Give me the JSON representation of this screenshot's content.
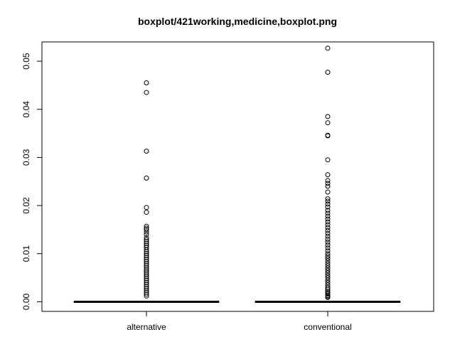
{
  "chart_data": {
    "type": "boxplot",
    "title": "boxplot/421working,medicine,boxplot.png",
    "xlabel": "",
    "ylabel": "",
    "categories": [
      "alternative",
      "conventional"
    ],
    "ylim": [
      -0.002,
      0.054
    ],
    "yticks": [
      0.0,
      0.01,
      0.02,
      0.03,
      0.04,
      0.05
    ],
    "ytick_labels": [
      "0.00",
      "0.01",
      "0.02",
      "0.03",
      "0.04",
      "0.05"
    ],
    "grid": false,
    "series": [
      {
        "category": "alternative",
        "box": {
          "min": 0,
          "q1": 0,
          "median": 0,
          "q3": 0,
          "max": 0
        },
        "outliers": [
          0.0455,
          0.0435,
          0.0313,
          0.0257,
          0.0196,
          0.0186,
          0.0157,
          0.0153,
          0.015,
          0.0145,
          0.014,
          0.0133,
          0.0129,
          0.0125,
          0.0121,
          0.0117,
          0.0113,
          0.0108,
          0.0104,
          0.01,
          0.0096,
          0.0092,
          0.0088,
          0.0084,
          0.008,
          0.0076,
          0.0072,
          0.0068,
          0.0064,
          0.006,
          0.0056,
          0.0052,
          0.0048,
          0.0044,
          0.004,
          0.0036,
          0.0032,
          0.0028,
          0.0024,
          0.002,
          0.0016,
          0.0012
        ]
      },
      {
        "category": "conventional",
        "box": {
          "min": 0,
          "q1": 0,
          "median": 0,
          "q3": 0,
          "max": 0
        },
        "outliers": [
          0.0527,
          0.0477,
          0.0385,
          0.0372,
          0.0346,
          0.0345,
          0.0295,
          0.0264,
          0.0252,
          0.0246,
          0.024,
          0.0228,
          0.0214,
          0.0209,
          0.0203,
          0.0197,
          0.019,
          0.0184,
          0.0178,
          0.0172,
          0.0166,
          0.016,
          0.0154,
          0.0148,
          0.0142,
          0.0136,
          0.013,
          0.0124,
          0.0118,
          0.0112,
          0.0106,
          0.01,
          0.0095,
          0.009,
          0.0085,
          0.008,
          0.0075,
          0.007,
          0.0065,
          0.006,
          0.0055,
          0.005,
          0.0045,
          0.004,
          0.0035,
          0.003,
          0.0026,
          0.0022,
          0.0019,
          0.0016,
          0.0013,
          0.0011,
          0.0009
        ]
      }
    ]
  }
}
